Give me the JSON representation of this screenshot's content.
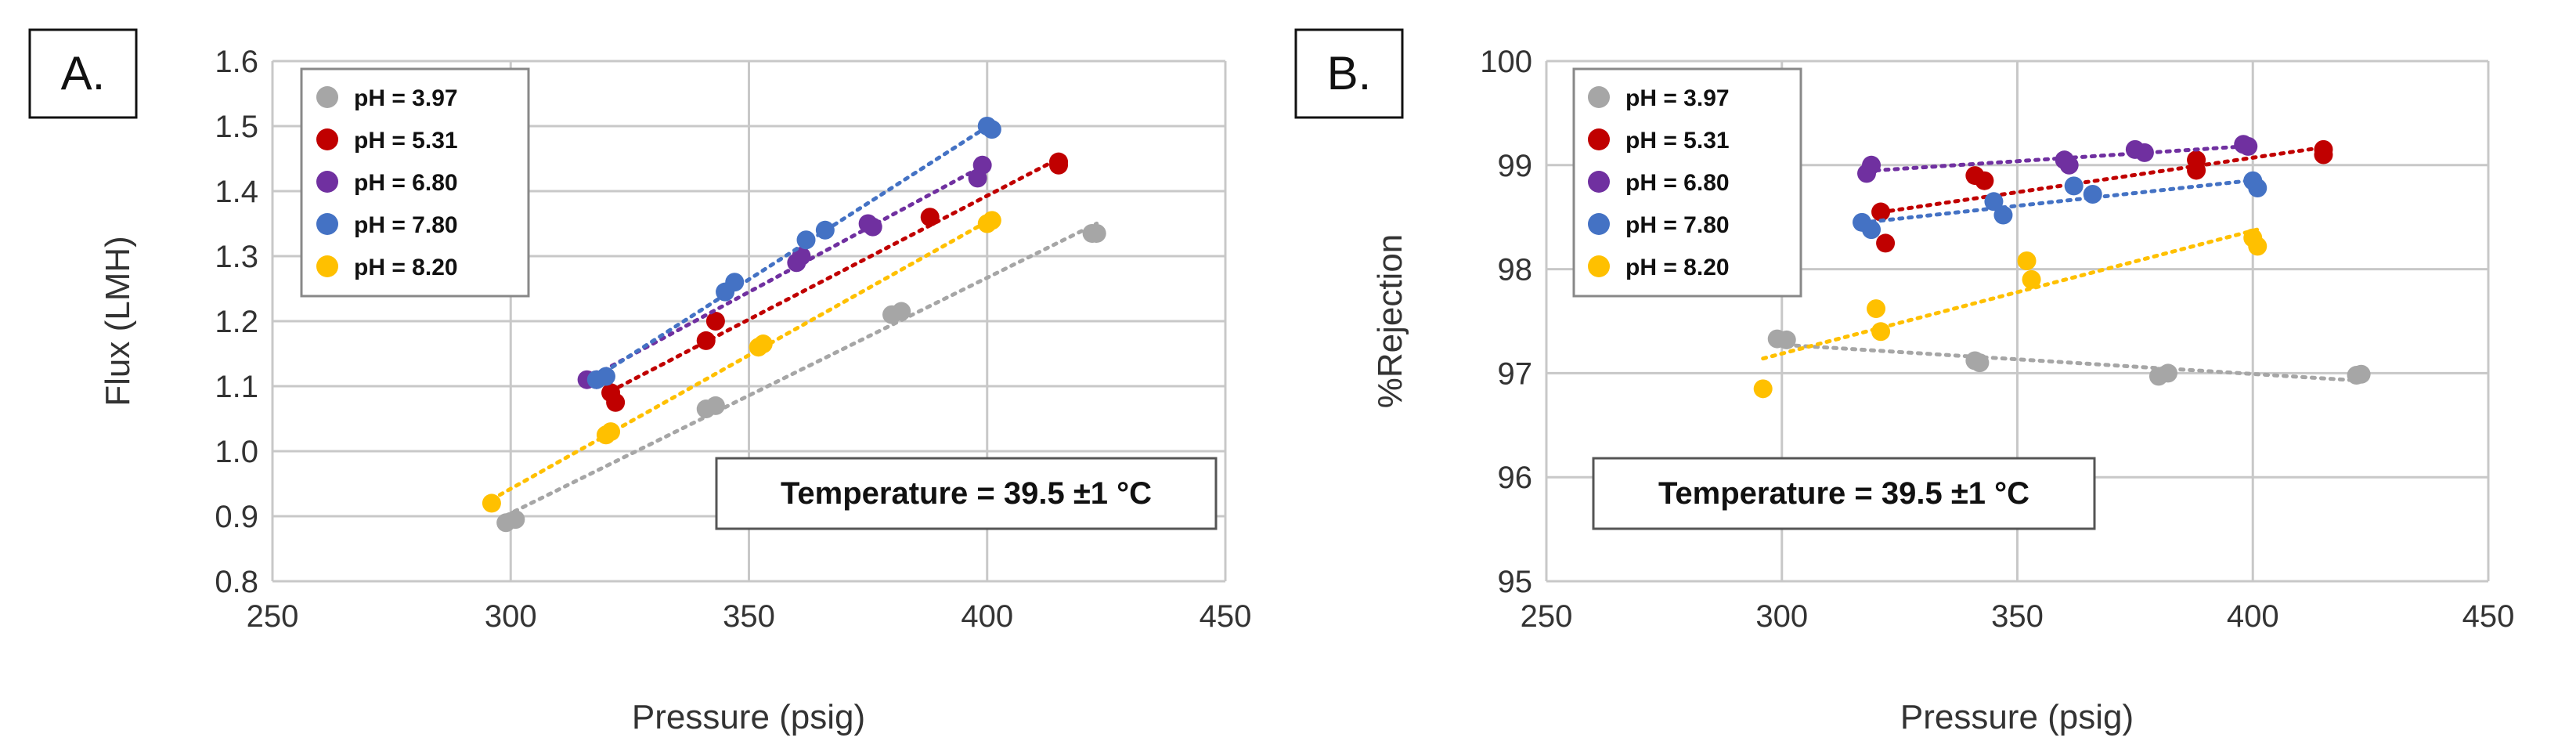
{
  "chart_data": [
    {
      "type": "scatter",
      "panel_label": "A.",
      "title": "",
      "xlabel": "Pressure (psig)",
      "ylabel": "Flux (LMH)",
      "xlim": [
        250,
        450
      ],
      "ylim": [
        0.8,
        1.6
      ],
      "xticks": [
        250,
        300,
        350,
        400,
        450
      ],
      "yticks": [
        0.8,
        0.9,
        1.0,
        1.1,
        1.2,
        1.3,
        1.4,
        1.5,
        1.6
      ],
      "xtick_labels": [
        "250",
        "300",
        "350",
        "400",
        "450"
      ],
      "ytick_labels": [
        "0.8",
        "0.9",
        "1.0",
        "1.1",
        "1.2",
        "1.3",
        "1.4",
        "1.5",
        "1.6"
      ],
      "grid": true,
      "legend_position": "top-left",
      "annotation": "Temperature = 39.5 ±1 °C",
      "series": [
        {
          "name": "pH = 3.97",
          "color": "#A6A6A6",
          "trendline": true,
          "x": [
            299,
            301,
            341,
            343,
            380,
            382,
            422,
            423
          ],
          "y": [
            0.89,
            0.895,
            1.065,
            1.07,
            1.21,
            1.215,
            1.335,
            1.335
          ]
        },
        {
          "name": "pH = 5.31",
          "color": "#C00000",
          "trendline": true,
          "x": [
            321,
            322,
            341,
            343,
            388,
            415,
            415
          ],
          "y": [
            1.09,
            1.075,
            1.17,
            1.2,
            1.36,
            1.445,
            1.44
          ]
        },
        {
          "name": "pH = 6.80",
          "color": "#7030A0",
          "trendline": true,
          "x": [
            316,
            318,
            360,
            361,
            375,
            376,
            398,
            399
          ],
          "y": [
            1.11,
            1.11,
            1.29,
            1.3,
            1.35,
            1.345,
            1.42,
            1.44
          ]
        },
        {
          "name": "pH = 7.80",
          "color": "#4472C4",
          "trendline": true,
          "x": [
            318,
            320,
            345,
            347,
            362,
            366,
            400,
            401
          ],
          "y": [
            1.11,
            1.115,
            1.245,
            1.26,
            1.325,
            1.34,
            1.5,
            1.495
          ]
        },
        {
          "name": "pH = 8.20",
          "color": "#FFC000",
          "trendline": true,
          "x": [
            296,
            320,
            321,
            352,
            353,
            400,
            401
          ],
          "y": [
            0.92,
            1.025,
            1.03,
            1.16,
            1.165,
            1.35,
            1.355
          ]
        }
      ]
    },
    {
      "type": "scatter",
      "panel_label": "B.",
      "title": "",
      "xlabel": "Pressure (psig)",
      "ylabel": "%Rejection",
      "xlim": [
        250,
        450
      ],
      "ylim": [
        95,
        100
      ],
      "xticks": [
        250,
        300,
        350,
        400,
        450
      ],
      "yticks": [
        95,
        96,
        97,
        98,
        99,
        100
      ],
      "xtick_labels": [
        "250",
        "300",
        "350",
        "400",
        "450"
      ],
      "ytick_labels": [
        "95",
        "96",
        "97",
        "98",
        "99",
        "100"
      ],
      "grid": true,
      "legend_position": "top-left",
      "annotation": "Temperature = 39.5 ±1 °C",
      "series": [
        {
          "name": "pH = 3.97",
          "color": "#A6A6A6",
          "trendline": true,
          "x": [
            299,
            301,
            341,
            342,
            380,
            382,
            422,
            423
          ],
          "y": [
            97.33,
            97.32,
            97.12,
            97.1,
            96.97,
            97.0,
            96.98,
            96.99
          ]
        },
        {
          "name": "pH = 5.31",
          "color": "#C00000",
          "trendline": true,
          "x": [
            321,
            322,
            341,
            343,
            388,
            388,
            415,
            415
          ],
          "y": [
            98.55,
            98.25,
            98.9,
            98.85,
            99.05,
            98.95,
            99.15,
            99.1
          ]
        },
        {
          "name": "pH = 6.80",
          "color": "#7030A0",
          "trendline": true,
          "x": [
            318,
            319,
            360,
            361,
            375,
            377,
            398,
            399
          ],
          "y": [
            98.92,
            99.0,
            99.05,
            99.0,
            99.15,
            99.12,
            99.2,
            99.18
          ]
        },
        {
          "name": "pH = 7.80",
          "color": "#4472C4",
          "trendline": true,
          "x": [
            317,
            319,
            345,
            347,
            362,
            366,
            400,
            401
          ],
          "y": [
            98.45,
            98.38,
            98.65,
            98.52,
            98.8,
            98.72,
            98.85,
            98.78
          ]
        },
        {
          "name": "pH = 8.20",
          "color": "#FFC000",
          "trendline": true,
          "x": [
            296,
            320,
            321,
            352,
            353,
            400,
            401
          ],
          "y": [
            96.85,
            97.62,
            97.4,
            98.08,
            97.9,
            98.3,
            98.22
          ]
        }
      ]
    }
  ]
}
